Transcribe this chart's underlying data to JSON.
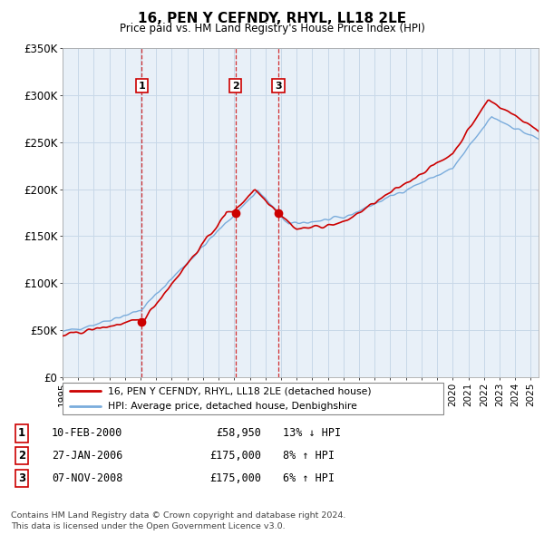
{
  "title": "16, PEN Y CEFNDY, RHYL, LL18 2LE",
  "subtitle": "Price paid vs. HM Land Registry's House Price Index (HPI)",
  "ylabel_ticks": [
    "£0",
    "£50K",
    "£100K",
    "£150K",
    "£200K",
    "£250K",
    "£300K",
    "£350K"
  ],
  "ylim": [
    0,
    350000
  ],
  "xlim_start": 1995.0,
  "xlim_end": 2025.5,
  "red_color": "#cc0000",
  "blue_color": "#7aacdc",
  "chart_bg": "#e8f0f8",
  "transactions": [
    {
      "label": "1",
      "date": 2000.08,
      "price": 58950
    },
    {
      "label": "2",
      "date": 2006.08,
      "price": 175000
    },
    {
      "label": "3",
      "date": 2008.83,
      "price": 175000
    }
  ],
  "table_data": [
    [
      "1",
      "10-FEB-2000",
      "£58,950",
      "13% ↓ HPI"
    ],
    [
      "2",
      "27-JAN-2006",
      "£175,000",
      "8% ↑ HPI"
    ],
    [
      "3",
      "07-NOV-2008",
      "£175,000",
      "6% ↑ HPI"
    ]
  ],
  "legend_line1": "16, PEN Y CEFNDY, RHYL, LL18 2LE (detached house)",
  "legend_line2": "HPI: Average price, detached house, Denbighshire",
  "footnote": "Contains HM Land Registry data © Crown copyright and database right 2024.\nThis data is licensed under the Open Government Licence v3.0.",
  "grid_color": "#c8d8e8"
}
